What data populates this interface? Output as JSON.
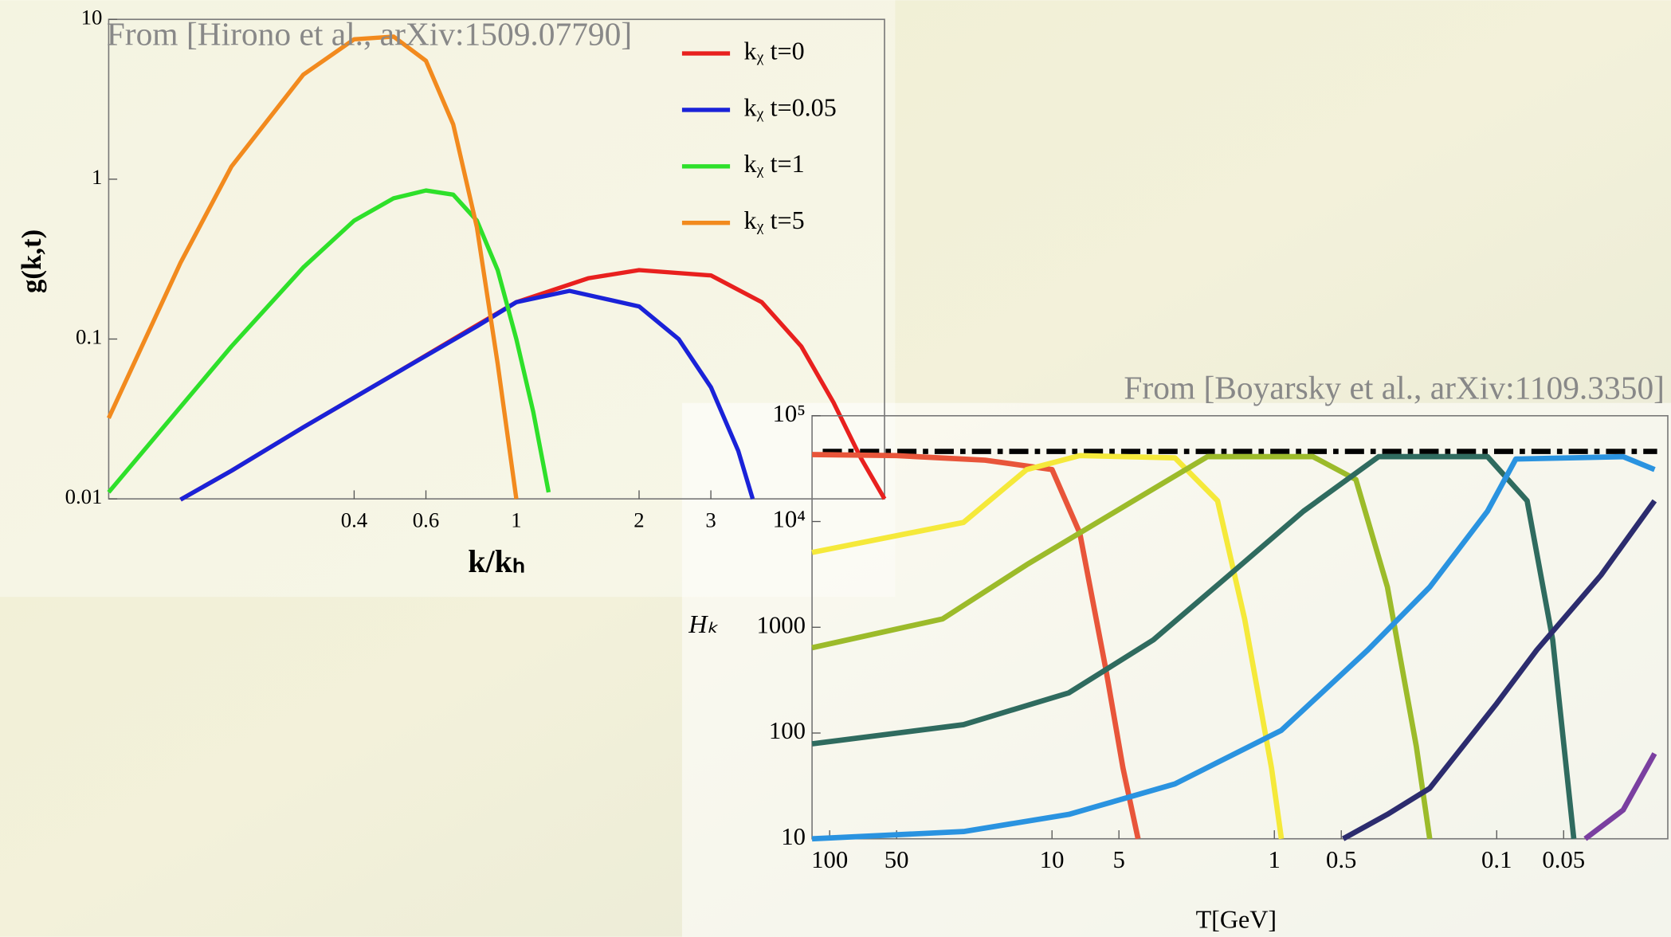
{
  "chart_data": [
    {
      "type": "line",
      "ylabel": "g(k,t)",
      "xlabel": "k/kₕ",
      "annotation": "From [Hirono et al., arXiv:1509.07790]",
      "xscale": "log",
      "yscale": "log",
      "xlim": [
        0.1,
        8
      ],
      "ylim": [
        0.01,
        10
      ],
      "xticks": [
        0.4,
        0.6,
        1,
        2,
        3
      ],
      "yticks": [
        0.01,
        0.1,
        1,
        10
      ],
      "grid": false,
      "legend": "upper right",
      "series": [
        {
          "name": "kᵪ t=0",
          "color": "#e8201e",
          "x": [
            0.15,
            0.2,
            0.3,
            0.5,
            0.8,
            1,
            1.5,
            2,
            3,
            4,
            5,
            6,
            7,
            8
          ],
          "values": [
            0.0099,
            0.015,
            0.028,
            0.06,
            0.122,
            0.17,
            0.24,
            0.27,
            0.25,
            0.17,
            0.09,
            0.04,
            0.018,
            0.01
          ]
        },
        {
          "name": "kᵪ t=0.05",
          "color": "#1a22d8",
          "x": [
            0.15,
            0.2,
            0.3,
            0.5,
            0.8,
            1,
            1.35,
            2,
            2.5,
            3,
            3.5,
            3.8
          ],
          "values": [
            0.0099,
            0.015,
            0.028,
            0.06,
            0.12,
            0.17,
            0.2,
            0.16,
            0.1,
            0.05,
            0.02,
            0.01
          ]
        },
        {
          "name": "kᵪ t=1",
          "color": "#2ee02a",
          "x": [
            0.1,
            0.2,
            0.3,
            0.4,
            0.5,
            0.6,
            0.7,
            0.8,
            0.9,
            1,
            1.1,
            1.2
          ],
          "values": [
            0.011,
            0.09,
            0.28,
            0.55,
            0.76,
            0.85,
            0.8,
            0.55,
            0.27,
            0.1,
            0.035,
            0.011
          ]
        },
        {
          "name": "kᵪ t=5",
          "color": "#f28a1e",
          "x": [
            0.1,
            0.15,
            0.2,
            0.3,
            0.4,
            0.5,
            0.6,
            0.7,
            0.8,
            0.9,
            1.0
          ],
          "values": [
            0.032,
            0.3,
            1.2,
            4.5,
            7.5,
            7.8,
            5.5,
            2.2,
            0.5,
            0.07,
            0.01
          ]
        }
      ]
    },
    {
      "type": "line",
      "ylabel": "Hₖ",
      "xlabel": "T[GeV]",
      "annotation": "From [Boyarsky et al., arXiv:1109.3350]",
      "xscale": "log",
      "yscale": "log",
      "xlim": [
        120,
        0.017
      ],
      "ylim": [
        10,
        100000
      ],
      "xticks": [
        100,
        50,
        10,
        5,
        1,
        0.5,
        0.1,
        0.05
      ],
      "yticks": [
        10,
        100,
        1000,
        {
          "value": 10000,
          "label": "10⁴"
        },
        {
          "value": 100000,
          "label": "10⁵"
        }
      ],
      "grid": false,
      "hline": 46000,
      "series": [
        {
          "color": "#e8553a",
          "x": [
            120,
            50,
            20,
            10,
            7.5,
            5.7,
            4.8,
            4.1
          ],
          "values": [
            43000,
            42000,
            38000,
            31000,
            7800,
            380,
            47,
            10
          ]
        },
        {
          "color": "#f5e93a",
          "x": [
            120,
            25,
            13,
            7.5,
            2.8,
            1.8,
            1.36,
            1.03,
            0.93
          ],
          "values": [
            5100,
            9800,
            31000,
            42000,
            40000,
            15700,
            1200,
            47,
            10
          ]
        },
        {
          "color": "#9cbb2a",
          "x": [
            120,
            31,
            13,
            4.3,
            2,
            0.67,
            0.43,
            0.31,
            0.23,
            0.2
          ],
          "values": [
            640,
            1200,
            3900,
            15700,
            41000,
            41000,
            25000,
            2400,
            75,
            10
          ]
        },
        {
          "color": "#2f6b5f",
          "x": [
            120,
            25,
            8.4,
            3.5,
            1.6,
            0.74,
            0.34,
            0.11,
            0.073,
            0.056,
            0.045
          ],
          "values": [
            79,
            120,
            240,
            760,
            3100,
            12500,
            41000,
            41000,
            15700,
            760,
            10
          ]
        },
        {
          "color": "#2a93e0",
          "x": [
            120,
            25,
            8.4,
            2.8,
            0.93,
            0.38,
            0.2,
            0.11,
            0.082,
            0.027,
            0.0195
          ],
          "values": [
            10,
            11.7,
            17,
            33,
            106,
            610,
            2400,
            12500,
            39000,
            41000,
            31000
          ]
        },
        {
          "color": "#2c2c6e",
          "x": [
            0.49,
            0.31,
            0.2,
            0.1,
            0.066,
            0.034,
            0.0195
          ],
          "values": [
            10,
            17,
            30,
            190,
            610,
            3100,
            15700
          ]
        },
        {
          "color": "#7a3fa0",
          "x": [
            0.04,
            0.027,
            0.0195
          ],
          "values": [
            10,
            18.7,
            64
          ]
        }
      ]
    }
  ]
}
